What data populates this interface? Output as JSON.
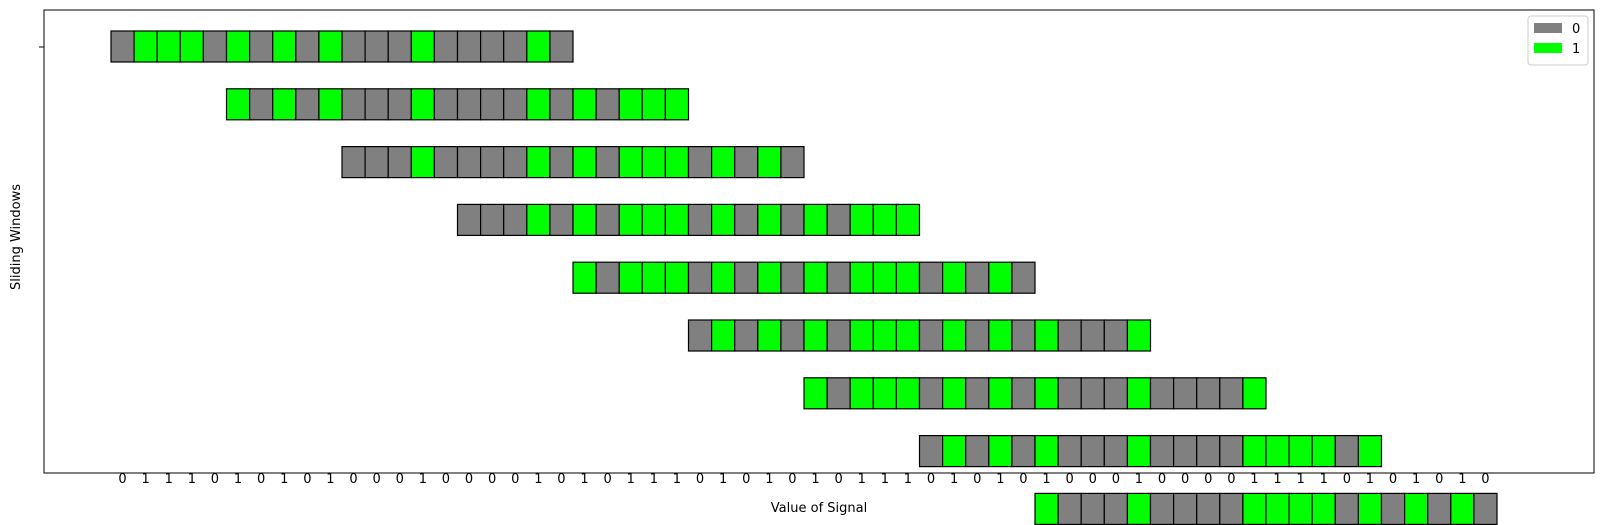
{
  "chart_data": {
    "type": "heatmap",
    "title": "",
    "xlabel": "Value of Signal",
    "ylabel": "Sliding Windows",
    "signal": [
      0,
      1,
      1,
      1,
      0,
      1,
      0,
      1,
      0,
      1,
      0,
      0,
      0,
      1,
      0,
      0,
      0,
      0,
      1,
      0,
      1,
      0,
      1,
      1,
      1,
      0,
      1,
      0,
      1,
      0,
      1,
      0,
      1,
      1,
      1,
      0,
      1,
      0,
      1,
      0,
      1,
      0,
      0,
      0,
      1,
      0,
      0,
      0,
      0,
      1,
      1,
      1,
      1,
      0,
      1,
      0,
      1,
      0,
      1,
      0
    ],
    "window_size": 20,
    "window_step": 5,
    "window_count": 9,
    "legend": {
      "placement": "top-right",
      "entries": [
        {
          "label": "0",
          "color": "#808080"
        },
        {
          "label": "1",
          "color": "#00ff00"
        }
      ]
    },
    "grid": false
  }
}
